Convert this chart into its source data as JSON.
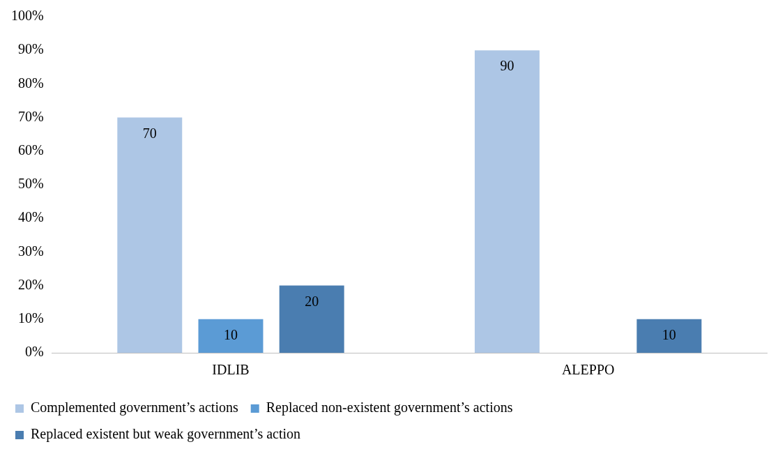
{
  "chart_data": {
    "type": "bar",
    "categories": [
      "IDLIB",
      "ALEPPO"
    ],
    "series": [
      {
        "name": "Complemented government’s actions",
        "color": "#adc6e5",
        "values": [
          70,
          90
        ]
      },
      {
        "name": "Replaced non-existent government’s actions",
        "color": "#5b9bd5",
        "values": [
          10,
          null
        ]
      },
      {
        "name": "Replaced existent but weak government’s action",
        "color": "#4a7db0",
        "values": [
          20,
          10
        ]
      }
    ],
    "ylim": [
      0,
      100
    ],
    "yticks": [
      {
        "value": 0,
        "label": "0%"
      },
      {
        "value": 10,
        "label": "10%"
      },
      {
        "value": 20,
        "label": "20%"
      },
      {
        "value": 30,
        "label": "30%"
      },
      {
        "value": 40,
        "label": "40%"
      },
      {
        "value": 50,
        "label": "50%"
      },
      {
        "value": 60,
        "label": "60%"
      },
      {
        "value": 70,
        "label": "70%"
      },
      {
        "value": 80,
        "label": "80%"
      },
      {
        "value": 90,
        "label": "90%"
      },
      {
        "value": 100,
        "label": "100%"
      }
    ],
    "grid": false,
    "legend": "bottom",
    "data_labels": true
  }
}
